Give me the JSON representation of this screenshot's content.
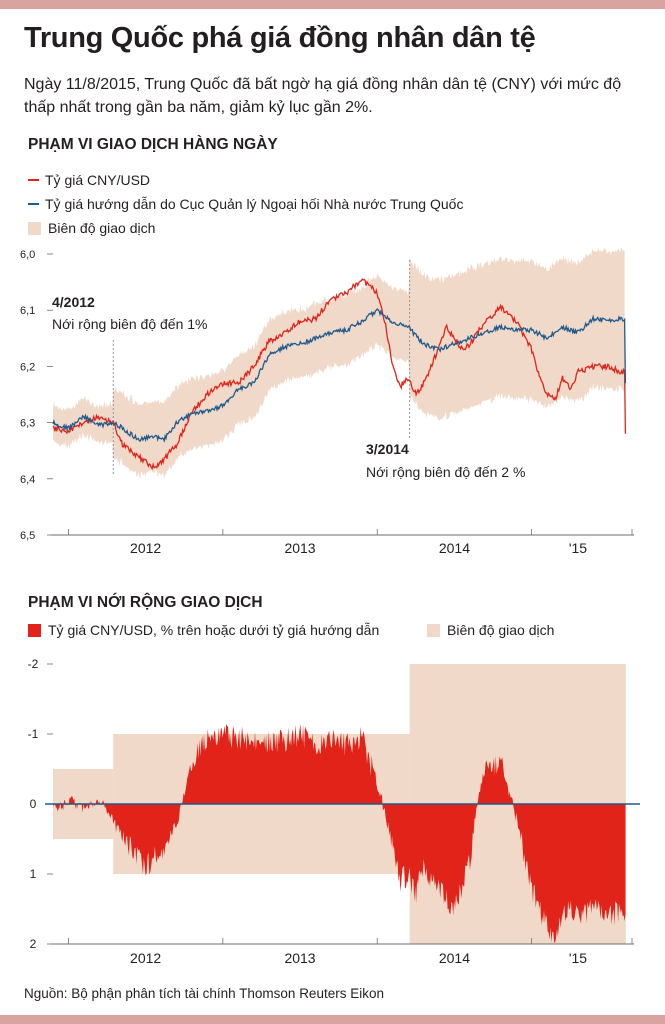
{
  "header": {
    "title": "Trung Quốc phá giá đồng nhân dân tệ",
    "subtitle": "Ngày 11/8/2015, Trung Quốc đã bất ngờ hạ giá đồng nhân dân tệ (CNY) với mức độ thấp nhất trong gần ba năm, giảm kỷ lục gần 2%."
  },
  "source": "Nguồn: Bộ phận phân tích tài chính Thomson Reuters Eikon",
  "colors": {
    "cny": "#e2231a",
    "fix": "#1f5a8c",
    "band": "#f0d9c9",
    "text": "#231f20",
    "strip": "#d9a3a0"
  },
  "chart_data": [
    {
      "type": "line",
      "title": "PHẠM VI GIAO DỊCH HÀNG NGÀY",
      "legend": [
        "Tỷ giá CNY/USD",
        "Tỷ giá hướng dẫn do Cục Quản lý Ngoại hối Nhà nước Trung Quốc",
        "Biên độ giao dịch"
      ],
      "y_inverted": true,
      "ylim": [
        6.0,
        6.5
      ],
      "yticks": [
        "6,0",
        "6,1",
        "6,2",
        "6,3",
        "6,4",
        "6,5"
      ],
      "xlim": [
        2011.9,
        2015.65
      ],
      "xticks": [
        "2012",
        "2013",
        "2014",
        "'15"
      ],
      "annotations": [
        {
          "title": "4/2012",
          "text": "Nới rộng biên độ đến 1%",
          "x": 2012.29
        },
        {
          "title": "3/2014",
          "text": "Nới rộng biên độ đến 2 %",
          "x": 2014.21
        }
      ],
      "series": [
        {
          "name": "Tỷ giá hướng dẫn do Cục Quản lý Ngoại hối Nhà nước Trung Quốc",
          "x": [
            2011.9,
            2012.0,
            2012.1,
            2012.2,
            2012.29,
            2012.35,
            2012.45,
            2012.55,
            2012.62,
            2012.7,
            2012.8,
            2012.9,
            2013.0,
            2013.1,
            2013.2,
            2013.3,
            2013.4,
            2013.5,
            2013.6,
            2013.7,
            2013.8,
            2013.9,
            2014.0,
            2014.1,
            2014.2,
            2014.3,
            2014.4,
            2014.5,
            2014.6,
            2014.7,
            2014.8,
            2014.9,
            2015.0,
            2015.1,
            2015.2,
            2015.3,
            2015.4,
            2015.5,
            2015.58,
            2015.607,
            2015.61
          ],
          "values": [
            6.3,
            6.31,
            6.29,
            6.305,
            6.3,
            6.31,
            6.33,
            6.325,
            6.33,
            6.3,
            6.285,
            6.28,
            6.27,
            6.24,
            6.23,
            6.18,
            6.165,
            6.16,
            6.15,
            6.14,
            6.135,
            6.12,
            6.1,
            6.12,
            6.13,
            6.16,
            6.17,
            6.16,
            6.15,
            6.14,
            6.13,
            6.135,
            6.135,
            6.15,
            6.13,
            6.14,
            6.115,
            6.12,
            6.115,
            6.12,
            6.23
          ]
        },
        {
          "name": "Tỷ giá CNY/USD",
          "x": [
            2011.9,
            2012.0,
            2012.1,
            2012.2,
            2012.29,
            2012.35,
            2012.45,
            2012.55,
            2012.62,
            2012.7,
            2012.8,
            2012.9,
            2013.0,
            2013.1,
            2013.2,
            2013.3,
            2013.4,
            2013.5,
            2013.6,
            2013.7,
            2013.8,
            2013.9,
            2014.0,
            2014.05,
            2014.1,
            2014.15,
            2014.2,
            2014.25,
            2014.3,
            2014.35,
            2014.45,
            2014.55,
            2014.6,
            2014.7,
            2014.8,
            2014.9,
            2015.0,
            2015.05,
            2015.1,
            2015.15,
            2015.2,
            2015.25,
            2015.3,
            2015.4,
            2015.5,
            2015.58,
            2015.607,
            2015.61
          ],
          "values": [
            6.31,
            6.315,
            6.3,
            6.29,
            6.3,
            6.34,
            6.36,
            6.38,
            6.365,
            6.34,
            6.28,
            6.25,
            6.23,
            6.23,
            6.2,
            6.155,
            6.14,
            6.12,
            6.115,
            6.08,
            6.07,
            6.045,
            6.07,
            6.12,
            6.2,
            6.235,
            6.22,
            6.25,
            6.23,
            6.2,
            6.13,
            6.17,
            6.16,
            6.12,
            6.095,
            6.12,
            6.17,
            6.22,
            6.25,
            6.26,
            6.22,
            6.24,
            6.21,
            6.2,
            6.2,
            6.21,
            6.21,
            6.32
          ]
        }
      ]
    },
    {
      "type": "area",
      "title": "PHẠM VI NỚI RỘNG GIAO DỊCH",
      "legend": [
        "Tỷ giá CNY/USD, % trên hoặc dưới tỷ giá hướng dẫn",
        "Biên độ giao dịch"
      ],
      "y_inverted": true,
      "ylim": [
        -2,
        2
      ],
      "yticks": [
        "-2",
        "-1",
        "0",
        "1",
        "2"
      ],
      "xlim": [
        2011.9,
        2015.65
      ],
      "xticks": [
        "2012",
        "2013",
        "2014",
        "'15"
      ],
      "band_steps": [
        {
          "from": 2011.9,
          "to": 2012.29,
          "limit": 0.5
        },
        {
          "from": 2012.29,
          "to": 2014.21,
          "limit": 1
        },
        {
          "from": 2014.21,
          "to": 2015.61,
          "limit": 2
        }
      ],
      "x": [
        2011.9,
        2012.0,
        2012.1,
        2012.2,
        2012.3,
        2012.4,
        2012.5,
        2012.6,
        2012.7,
        2012.8,
        2012.9,
        2013.0,
        2013.1,
        2013.2,
        2013.3,
        2013.4,
        2013.5,
        2013.6,
        2013.7,
        2013.8,
        2013.9,
        2014.0,
        2014.1,
        2014.15,
        2014.2,
        2014.25,
        2014.3,
        2014.4,
        2014.5,
        2014.6,
        2014.65,
        2014.7,
        2014.8,
        2014.9,
        2015.0,
        2015.05,
        2015.1,
        2015.15,
        2015.2,
        2015.3,
        2015.4,
        2015.5,
        2015.61
      ],
      "values": [
        0.1,
        -0.05,
        0.05,
        -0.1,
        0.3,
        0.6,
        0.9,
        0.7,
        0.3,
        -0.6,
        -0.95,
        -1.0,
        -0.95,
        -0.9,
        -0.9,
        -0.9,
        -1.0,
        -0.8,
        -0.9,
        -0.85,
        -0.95,
        -0.3,
        0.6,
        1.1,
        1.0,
        1.3,
        0.9,
        1.2,
        1.5,
        0.8,
        -0.1,
        -0.5,
        -0.6,
        0.2,
        1.2,
        1.5,
        1.8,
        2.0,
        1.5,
        1.6,
        1.5,
        1.6,
        1.5
      ]
    }
  ]
}
